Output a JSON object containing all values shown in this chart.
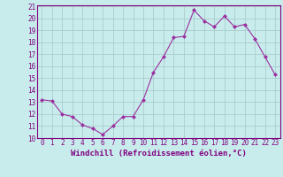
{
  "x": [
    0,
    1,
    2,
    3,
    4,
    5,
    6,
    7,
    8,
    9,
    10,
    11,
    12,
    13,
    14,
    15,
    16,
    17,
    18,
    19,
    20,
    21,
    22,
    23
  ],
  "y": [
    13.2,
    13.1,
    12.0,
    11.8,
    11.1,
    10.8,
    10.3,
    11.0,
    11.8,
    11.8,
    13.2,
    15.5,
    16.8,
    18.4,
    18.5,
    20.7,
    19.8,
    19.3,
    20.2,
    19.3,
    19.5,
    18.3,
    16.8,
    15.3
  ],
  "line_color": "#9b30a0",
  "marker": "D",
  "marker_size": 2,
  "bg_color": "#c8ecec",
  "grid_color": "#aacccc",
  "xlabel": "Windchill (Refroidissement éolien,°C)",
  "ylim": [
    10,
    21
  ],
  "xlim": [
    -0.5,
    23.5
  ],
  "yticks": [
    10,
    11,
    12,
    13,
    14,
    15,
    16,
    17,
    18,
    19,
    20,
    21
  ],
  "xticks": [
    0,
    1,
    2,
    3,
    4,
    5,
    6,
    7,
    8,
    9,
    10,
    11,
    12,
    13,
    14,
    15,
    16,
    17,
    18,
    19,
    20,
    21,
    22,
    23
  ],
  "tick_color": "#800080",
  "axis_color": "#800080",
  "label_fontsize": 6.5,
  "tick_fontsize": 5.5
}
